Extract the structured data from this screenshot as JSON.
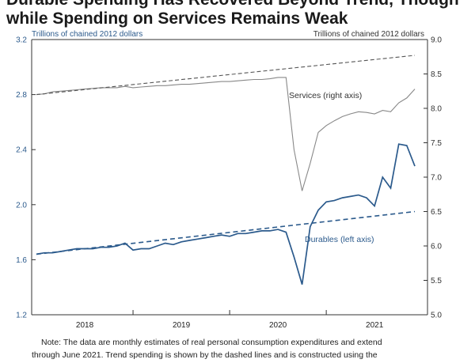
{
  "title": {
    "line1": "Durable Spending Has Recovered Beyond Trend, Though",
    "line2": "while Spending on Services Remains Weak"
  },
  "note": {
    "line1": "Note:  The data are monthly estimates of real personal consumption expenditures and extend",
    "line2": "through June 2021. Trend spending is shown by the dashed lines and is constructed using the"
  },
  "colors": {
    "durables": "#2b5a8c",
    "services": "#888888",
    "left_axis": "#2b5a8c",
    "right_axis": "#333333"
  },
  "chart_data": {
    "type": "line",
    "left_axis_label": "Trillions of chained 2012 dollars",
    "right_axis_label": "Trillions of chained 2012 dollars",
    "left_ylim": [
      1.2,
      3.2
    ],
    "left_ticks": [
      "1.2",
      "1.6",
      "2.0",
      "2.4",
      "2.8",
      "3.2"
    ],
    "right_ylim": [
      5.0,
      9.0
    ],
    "right_ticks": [
      "5.0",
      "5.5",
      "6.0",
      "6.5",
      "7.0",
      "7.5",
      "8.0",
      "8.5",
      "9.0"
    ],
    "x_range": [
      "2017-07",
      "2021-06"
    ],
    "x_tick_labels": [
      "2018",
      "2019",
      "2020",
      "2021"
    ],
    "x_label_dates": [
      "2018-01",
      "2019-01",
      "2020-01",
      "2021-01"
    ],
    "x_tick_dates": [
      "2018-07",
      "2019-07",
      "2020-07"
    ],
    "series": [
      {
        "name": "Durables (left axis)",
        "axis": "left",
        "style": "solid",
        "dates": [
          "2017-07",
          "2017-08",
          "2017-09",
          "2017-10",
          "2017-11",
          "2017-12",
          "2018-01",
          "2018-02",
          "2018-03",
          "2018-04",
          "2018-05",
          "2018-06",
          "2018-07",
          "2018-08",
          "2018-09",
          "2018-10",
          "2018-11",
          "2018-12",
          "2019-01",
          "2019-02",
          "2019-03",
          "2019-04",
          "2019-05",
          "2019-06",
          "2019-07",
          "2019-08",
          "2019-09",
          "2019-10",
          "2019-11",
          "2019-12",
          "2020-01",
          "2020-02",
          "2020-03",
          "2020-04",
          "2020-05",
          "2020-06",
          "2020-07",
          "2020-08",
          "2020-09",
          "2020-10",
          "2020-11",
          "2020-12",
          "2021-01",
          "2021-02",
          "2021-03",
          "2021-04",
          "2021-05",
          "2021-06"
        ],
        "values": [
          1.64,
          1.65,
          1.65,
          1.66,
          1.67,
          1.68,
          1.68,
          1.68,
          1.69,
          1.69,
          1.7,
          1.72,
          1.67,
          1.68,
          1.68,
          1.7,
          1.72,
          1.71,
          1.73,
          1.74,
          1.75,
          1.76,
          1.77,
          1.78,
          1.77,
          1.79,
          1.79,
          1.8,
          1.81,
          1.81,
          1.82,
          1.8,
          1.62,
          1.42,
          1.84,
          1.96,
          2.02,
          2.03,
          2.05,
          2.06,
          2.07,
          2.05,
          1.99,
          2.2,
          2.12,
          2.44,
          2.43,
          2.28
        ]
      },
      {
        "name": "Services (right axis)",
        "axis": "right",
        "style": "solid",
        "dates": [
          "2017-07",
          "2017-08",
          "2017-09",
          "2017-10",
          "2017-11",
          "2017-12",
          "2018-01",
          "2018-02",
          "2018-03",
          "2018-04",
          "2018-05",
          "2018-06",
          "2018-07",
          "2018-08",
          "2018-09",
          "2018-10",
          "2018-11",
          "2018-12",
          "2019-01",
          "2019-02",
          "2019-03",
          "2019-04",
          "2019-05",
          "2019-06",
          "2019-07",
          "2019-08",
          "2019-09",
          "2019-10",
          "2019-11",
          "2019-12",
          "2020-01",
          "2020-02",
          "2020-03",
          "2020-04",
          "2020-05",
          "2020-06",
          "2020-07",
          "2020-08",
          "2020-09",
          "2020-10",
          "2020-11",
          "2020-12",
          "2021-01",
          "2021-02",
          "2021-03",
          "2021-04",
          "2021-05",
          "2021-06"
        ],
        "values": [
          8.2,
          8.21,
          8.24,
          8.25,
          8.26,
          8.27,
          8.28,
          8.29,
          8.3,
          8.3,
          8.3,
          8.32,
          8.3,
          8.31,
          8.32,
          8.33,
          8.33,
          8.34,
          8.35,
          8.35,
          8.36,
          8.37,
          8.38,
          8.39,
          8.39,
          8.4,
          8.41,
          8.42,
          8.42,
          8.43,
          8.45,
          8.45,
          7.4,
          6.8,
          7.2,
          7.65,
          7.75,
          7.82,
          7.88,
          7.92,
          7.95,
          7.94,
          7.92,
          7.97,
          7.95,
          8.08,
          8.15,
          8.28
        ]
      },
      {
        "name": "Durables trend",
        "axis": "left",
        "style": "dashed",
        "dates": [
          "2017-07",
          "2021-06"
        ],
        "values": [
          1.64,
          1.95
        ]
      },
      {
        "name": "Services trend",
        "axis": "right",
        "style": "dashed",
        "dates": [
          "2017-07",
          "2021-06"
        ],
        "values": [
          8.2,
          8.77
        ]
      }
    ],
    "annotations": [
      {
        "text": "Services (right axis)",
        "series": "Services (right axis)"
      },
      {
        "text": "Durables (left axis)",
        "series": "Durables (left axis)"
      }
    ]
  }
}
